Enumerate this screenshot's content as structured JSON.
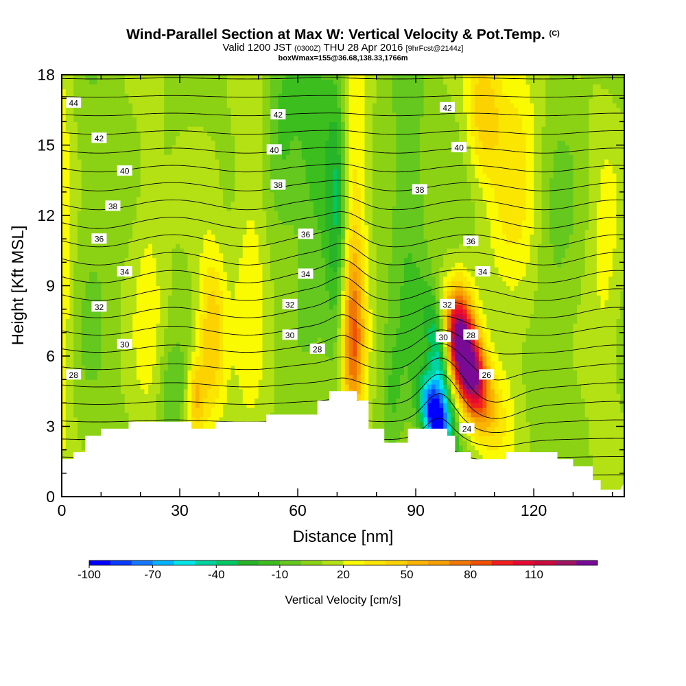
{
  "header": {
    "title": "Wind-Parallel Section at Max W: Vertical Velocity & Pot.Temp.",
    "title_tag": "(C)",
    "line2_a": "Valid 1200 JST",
    "line2_b": "(0300Z)",
    "line2_c": "THU 28 Apr 2016",
    "line2_d": "[9hrFcst@2144z]",
    "line3": "boxWmax=155@36.68,138.33,1766m"
  },
  "chart_data": {
    "type": "heatmap",
    "xlabel": "Distance [nm]",
    "ylabel": "Height [Kft MSL]",
    "xlim": [
      0,
      143
    ],
    "ylim": [
      0,
      18
    ],
    "x_ticks": [
      "0",
      "30",
      "60",
      "90",
      "120"
    ],
    "x_tick_values": [
      0,
      30,
      60,
      90,
      120
    ],
    "y_ticks": [
      "0",
      "3",
      "6",
      "9",
      "12",
      "15",
      "18"
    ],
    "y_tick_values": [
      0,
      3,
      6,
      9,
      12,
      15,
      18
    ],
    "colorbar": {
      "title": "Vertical Velocity [cm/s]",
      "labels": [
        "-100",
        "-70",
        "-40",
        "-10",
        "20",
        "50",
        "80",
        "110"
      ],
      "label_values": [
        -100,
        -70,
        -40,
        -10,
        20,
        50,
        80,
        110
      ],
      "levels": [
        -100,
        -90,
        -80,
        -70,
        -60,
        -50,
        -40,
        -30,
        -20,
        -10,
        0,
        10,
        20,
        30,
        40,
        50,
        60,
        70,
        80,
        90,
        100,
        110,
        120,
        130
      ],
      "colors": [
        "#0000ff",
        "#0a3cff",
        "#1478ff",
        "#00b4ff",
        "#00e6e6",
        "#00d2a0",
        "#00c864",
        "#28b428",
        "#3cbe1e",
        "#64c81e",
        "#8cd214",
        "#b4e114",
        "#fafa00",
        "#fae600",
        "#fcd200",
        "#fab400",
        "#f5a000",
        "#f07800",
        "#f05000",
        "#f01e1e",
        "#e60a32",
        "#c80a3c",
        "#a01464",
        "#780a96"
      ]
    },
    "terrain_kft": [
      [
        0,
        1.6
      ],
      [
        3,
        1.6
      ],
      [
        3,
        1.9
      ],
      [
        6,
        1.9
      ],
      [
        6,
        2.6
      ],
      [
        10,
        2.6
      ],
      [
        10,
        2.9
      ],
      [
        17,
        2.9
      ],
      [
        17,
        3.2
      ],
      [
        33,
        3.2
      ],
      [
        33,
        2.9
      ],
      [
        39,
        2.9
      ],
      [
        39,
        3.2
      ],
      [
        52,
        3.2
      ],
      [
        52,
        3.5
      ],
      [
        65,
        3.5
      ],
      [
        65,
        4.1
      ],
      [
        68,
        4.1
      ],
      [
        68,
        4.5
      ],
      [
        75,
        4.5
      ],
      [
        75,
        4.1
      ],
      [
        78,
        4.1
      ],
      [
        78,
        2.9
      ],
      [
        82,
        2.9
      ],
      [
        82,
        2.3
      ],
      [
        88,
        2.3
      ],
      [
        88,
        2.9
      ],
      [
        98,
        2.9
      ],
      [
        98,
        2.6
      ],
      [
        100,
        2.6
      ],
      [
        100,
        1.9
      ],
      [
        104,
        1.9
      ],
      [
        104,
        1.6
      ],
      [
        113,
        1.6
      ],
      [
        113,
        1.9
      ],
      [
        126,
        1.9
      ],
      [
        126,
        1.6
      ],
      [
        130,
        1.6
      ],
      [
        130,
        1.3
      ],
      [
        135,
        1.3
      ],
      [
        135,
        0.7
      ],
      [
        137,
        0.7
      ],
      [
        137,
        0.3
      ],
      [
        142,
        0.3
      ],
      [
        143,
        0.6
      ]
    ],
    "w_features": [
      {
        "x": 104,
        "z": 5.3,
        "w": 125,
        "sx": 3.0,
        "sz": 1.6,
        "tilt": -0.35
      },
      {
        "x": 101,
        "z": 7.0,
        "w": 75,
        "sx": 2.5,
        "sz": 1.5,
        "tilt": 0
      },
      {
        "x": 95,
        "z": 3.4,
        "w": -115,
        "sx": 2.4,
        "sz": 1.2,
        "tilt": -0.3
      },
      {
        "x": 96,
        "z": 6.0,
        "w": -55,
        "sx": 2.0,
        "sz": 1.8,
        "tilt": -0.3
      },
      {
        "x": 38,
        "z": 6.8,
        "w": 45,
        "sx": 2.6,
        "sz": 2.6,
        "tilt": 0
      },
      {
        "x": 34,
        "z": 4.2,
        "w": 38,
        "sx": 1.6,
        "sz": 1.2,
        "tilt": 0
      },
      {
        "x": 74,
        "z": 11.0,
        "w": 35,
        "sx": 2.6,
        "sz": 6.0,
        "tilt": 0
      },
      {
        "x": 74,
        "z": 6.5,
        "w": 45,
        "sx": 2.0,
        "sz": 2.5,
        "tilt": 0
      },
      {
        "x": 70,
        "z": 12.0,
        "w": -40,
        "sx": 2.0,
        "sz": 4.5,
        "tilt": 0
      },
      {
        "x": 64,
        "z": 14.5,
        "w": -25,
        "sx": 3.5,
        "sz": 4.0,
        "tilt": 0
      },
      {
        "x": 56,
        "z": 15.5,
        "w": -20,
        "sx": 3.0,
        "sz": 3.0,
        "tilt": 0
      },
      {
        "x": 88,
        "z": 12.0,
        "w": -20,
        "sx": 3.5,
        "sz": 5.0,
        "tilt": 0
      },
      {
        "x": 84,
        "z": 4.0,
        "w": -15,
        "sx": 2.0,
        "sz": 2.0,
        "tilt": 0
      },
      {
        "x": 48,
        "z": 10.0,
        "w": 18,
        "sx": 3.0,
        "sz": 6.0,
        "tilt": 0
      },
      {
        "x": 115,
        "z": 14.0,
        "w": 25,
        "sx": 5.0,
        "sz": 5.0,
        "tilt": 0
      },
      {
        "x": 107,
        "z": 16.5,
        "w": 35,
        "sx": 3.0,
        "sz": 2.0,
        "tilt": 0
      },
      {
        "x": 125,
        "z": 10.0,
        "w": -10,
        "sx": 4.0,
        "sz": 6.0,
        "tilt": 0
      },
      {
        "x": 22,
        "z": 9.0,
        "w": 15,
        "sx": 3.0,
        "sz": 5.0,
        "tilt": 0
      },
      {
        "x": 8,
        "z": 12.0,
        "w": -8,
        "sx": 3.0,
        "sz": 6.0,
        "tilt": 0
      },
      {
        "x": 28,
        "z": 4.5,
        "w": -18,
        "sx": 2.5,
        "sz": 1.5,
        "tilt": 0
      },
      {
        "x": 0,
        "z": 10.0,
        "w": 20,
        "sx": 2.0,
        "sz": 8.0,
        "tilt": 0
      },
      {
        "x": 138,
        "z": 9.0,
        "w": 15,
        "sx": 3.0,
        "sz": 5.0,
        "tilt": 0
      },
      {
        "x": 112,
        "z": 3.5,
        "w": 15,
        "sx": 3.0,
        "sz": 2.0,
        "tilt": 0
      }
    ],
    "theta_contour_labels": [
      {
        "text": "44",
        "x": 3,
        "z": 16.8
      },
      {
        "text": "42",
        "x": 9.5,
        "z": 15.3
      },
      {
        "text": "40",
        "x": 16,
        "z": 13.9
      },
      {
        "text": "38",
        "x": 13,
        "z": 12.4
      },
      {
        "text": "36",
        "x": 9.5,
        "z": 11.0
      },
      {
        "text": "34",
        "x": 16,
        "z": 9.6
      },
      {
        "text": "32",
        "x": 9.5,
        "z": 8.1
      },
      {
        "text": "30",
        "x": 16,
        "z": 6.5
      },
      {
        "text": "28",
        "x": 3,
        "z": 5.2
      },
      {
        "text": "42",
        "x": 55,
        "z": 16.3
      },
      {
        "text": "40",
        "x": 54,
        "z": 14.8
      },
      {
        "text": "38",
        "x": 55,
        "z": 13.3
      },
      {
        "text": "36",
        "x": 62,
        "z": 11.2
      },
      {
        "text": "34",
        "x": 62,
        "z": 9.5
      },
      {
        "text": "32",
        "x": 58,
        "z": 8.2
      },
      {
        "text": "30",
        "x": 58,
        "z": 6.9
      },
      {
        "text": "28",
        "x": 65,
        "z": 6.3
      },
      {
        "text": "42",
        "x": 98,
        "z": 16.6
      },
      {
        "text": "40",
        "x": 101,
        "z": 14.9
      },
      {
        "text": "38",
        "x": 91,
        "z": 13.1
      },
      {
        "text": "36",
        "x": 104,
        "z": 10.9
      },
      {
        "text": "34",
        "x": 107,
        "z": 9.6
      },
      {
        "text": "32",
        "x": 98,
        "z": 8.2
      },
      {
        "text": "30",
        "x": 97,
        "z": 6.8
      },
      {
        "text": "28",
        "x": 104,
        "z": 6.9
      },
      {
        "text": "26",
        "x": 108,
        "z": 5.2
      },
      {
        "text": "24",
        "x": 103,
        "z": 2.9
      }
    ]
  }
}
